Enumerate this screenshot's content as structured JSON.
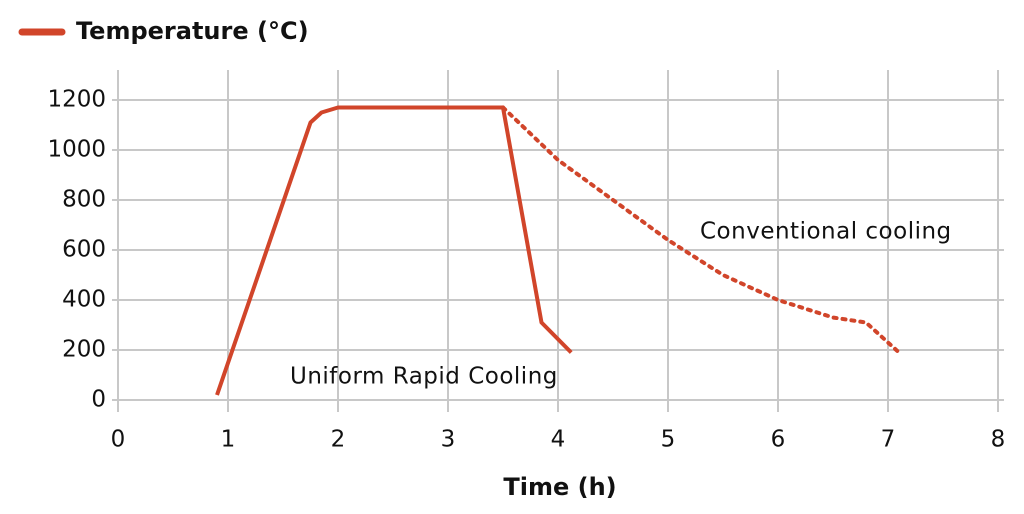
{
  "chart_data": {
    "type": "line",
    "legend": "Temperature (°C)",
    "xlabel": "Time (h)",
    "xlim": [
      0,
      8
    ],
    "xticks": [
      0,
      1,
      2,
      3,
      4,
      5,
      6,
      7,
      8
    ],
    "ylim": [
      0,
      1300
    ],
    "yticks": [
      0,
      200,
      400,
      600,
      800,
      1000,
      1200
    ],
    "grid": true,
    "series": [
      {
        "name": "Uniform Rapid Cooling",
        "color": "#d1452a",
        "dash": false,
        "x": [
          0.9,
          1.75,
          1.85,
          2.0,
          3.5,
          3.85,
          4.12
        ],
        "values": [
          20,
          1110,
          1150,
          1170,
          1170,
          310,
          190
        ]
      },
      {
        "name": "Conventional cooling",
        "color": "#d1452a",
        "dash": true,
        "x": [
          3.5,
          4,
          4.5,
          5,
          5.5,
          6,
          6.5,
          6.8,
          7.1
        ],
        "values": [
          1170,
          960,
          800,
          640,
          500,
          400,
          330,
          310,
          190
        ]
      }
    ]
  }
}
